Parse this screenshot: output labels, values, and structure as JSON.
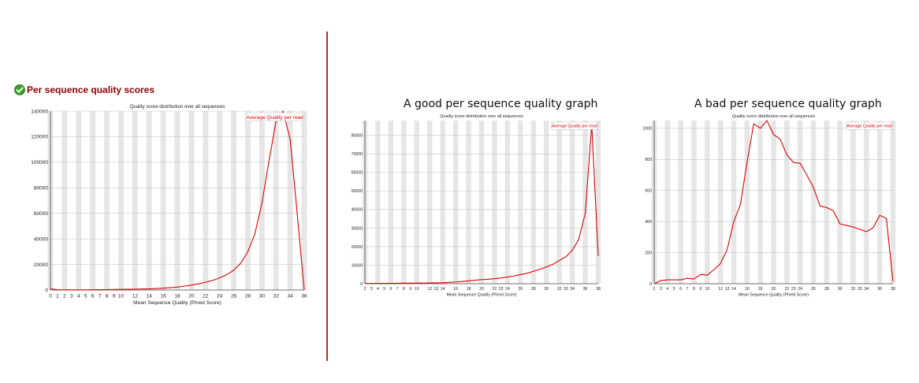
{
  "heading": {
    "text": "Per sequence quality scores",
    "icon": "check-circle-icon",
    "color": "#8b0000"
  },
  "panels": {
    "good_title": "A good per sequence quality graph",
    "bad_title": "A bad per sequence quality graph"
  },
  "colors": {
    "line": "#dd0000",
    "band": "#e6e6e6",
    "grid": "#c8c8c8",
    "divider": "#c62828"
  },
  "chart_data": [
    {
      "type": "line",
      "title": "Quality score distribution over all sequences",
      "xlabel": "Mean Sequence Quality (Phred Score)",
      "ylabel": "",
      "legend": "Average Quality per read",
      "legend_position": "top-right",
      "grid": true,
      "xlim": [
        0,
        36
      ],
      "ylim": [
        0,
        140000
      ],
      "x_ticks": [
        "0",
        "1",
        "2",
        "3",
        "4",
        "5",
        "6",
        "7",
        "8",
        "9",
        "10",
        "12",
        "14",
        "16",
        "18",
        "20",
        "22",
        "24",
        "26",
        "28",
        "30",
        "32",
        "34",
        "36"
      ],
      "y_ticks": [
        "0",
        "20000",
        "40000",
        "60000",
        "80000",
        "100000",
        "120000",
        "140000"
      ],
      "x": [
        0,
        1,
        2,
        3,
        4,
        5,
        6,
        7,
        8,
        9,
        10,
        11,
        12,
        13,
        14,
        15,
        16,
        17,
        18,
        19,
        20,
        21,
        22,
        23,
        24,
        25,
        26,
        27,
        28,
        29,
        30,
        31,
        32,
        33,
        34,
        35,
        36
      ],
      "values": [
        1000,
        200,
        100,
        100,
        100,
        150,
        200,
        250,
        300,
        400,
        500,
        600,
        700,
        800,
        900,
        1100,
        1400,
        1800,
        2300,
        3000,
        3800,
        4800,
        6000,
        7500,
        9500,
        12000,
        15500,
        21000,
        30000,
        44000,
        68000,
        101000,
        132000,
        140000,
        118000,
        60000,
        0
      ]
    },
    {
      "type": "line",
      "title": "Quality score distribution over all sequences",
      "xlabel": "Mean Sequence Quality (Phred Score)",
      "ylabel": "",
      "legend": "Average Quality per read",
      "legend_position": "top-right",
      "grid": true,
      "xlim": [
        2,
        38
      ],
      "ylim": [
        0,
        88000
      ],
      "x_ticks": [
        "2",
        "3",
        "4",
        "5",
        "6",
        "7",
        "8",
        "9",
        "10",
        "12",
        "13",
        "14",
        "16",
        "18",
        "20",
        "22",
        "23",
        "24",
        "26",
        "28",
        "30",
        "32",
        "33",
        "34",
        "36",
        "38"
      ],
      "y_ticks": [
        "0",
        "10000",
        "20000",
        "30000",
        "40000",
        "50000",
        "60000",
        "70000",
        "80000"
      ],
      "x": [
        2,
        3,
        4,
        5,
        6,
        7,
        8,
        9,
        10,
        11,
        12,
        13,
        14,
        15,
        16,
        17,
        18,
        19,
        20,
        21,
        22,
        23,
        24,
        25,
        26,
        27,
        28,
        29,
        30,
        31,
        32,
        33,
        34,
        35,
        36,
        37,
        38
      ],
      "values": [
        100,
        120,
        150,
        200,
        200,
        250,
        300,
        300,
        350,
        350,
        400,
        450,
        500,
        700,
        900,
        1200,
        1500,
        1900,
        2200,
        2400,
        2700,
        3100,
        3600,
        4200,
        4900,
        5600,
        6700,
        7800,
        9000,
        10500,
        12500,
        14500,
        18000,
        24000,
        38000,
        86000,
        15000
      ]
    },
    {
      "type": "line",
      "title": "Quality score distribution over all sequences",
      "xlabel": "Mean Sequence Quality (Phred Score)",
      "ylabel": "",
      "legend": "Average Quality per read",
      "legend_position": "top-right",
      "grid": true,
      "xlim": [
        2,
        38
      ],
      "ylim": [
        0,
        1050
      ],
      "x_ticks": [
        "2",
        "3",
        "4",
        "5",
        "6",
        "7",
        "8",
        "9",
        "10",
        "12",
        "13",
        "14",
        "16",
        "18",
        "20",
        "22",
        "23",
        "24",
        "26",
        "28",
        "30",
        "32",
        "33",
        "34",
        "36",
        "38"
      ],
      "y_ticks": [
        "0",
        "200",
        "400",
        "600",
        "800",
        "1000"
      ],
      "x": [
        2,
        3,
        4,
        5,
        6,
        7,
        8,
        9,
        10,
        11,
        12,
        13,
        14,
        15,
        16,
        17,
        18,
        19,
        20,
        21,
        22,
        23,
        24,
        25,
        26,
        27,
        28,
        29,
        30,
        31,
        32,
        33,
        34,
        35,
        36,
        37,
        38
      ],
      "values": [
        0,
        20,
        25,
        25,
        25,
        35,
        30,
        60,
        55,
        90,
        130,
        220,
        400,
        510,
        780,
        1030,
        1000,
        1050,
        960,
        930,
        830,
        780,
        775,
        700,
        620,
        500,
        490,
        470,
        385,
        375,
        365,
        350,
        335,
        360,
        440,
        420,
        15
      ]
    }
  ]
}
